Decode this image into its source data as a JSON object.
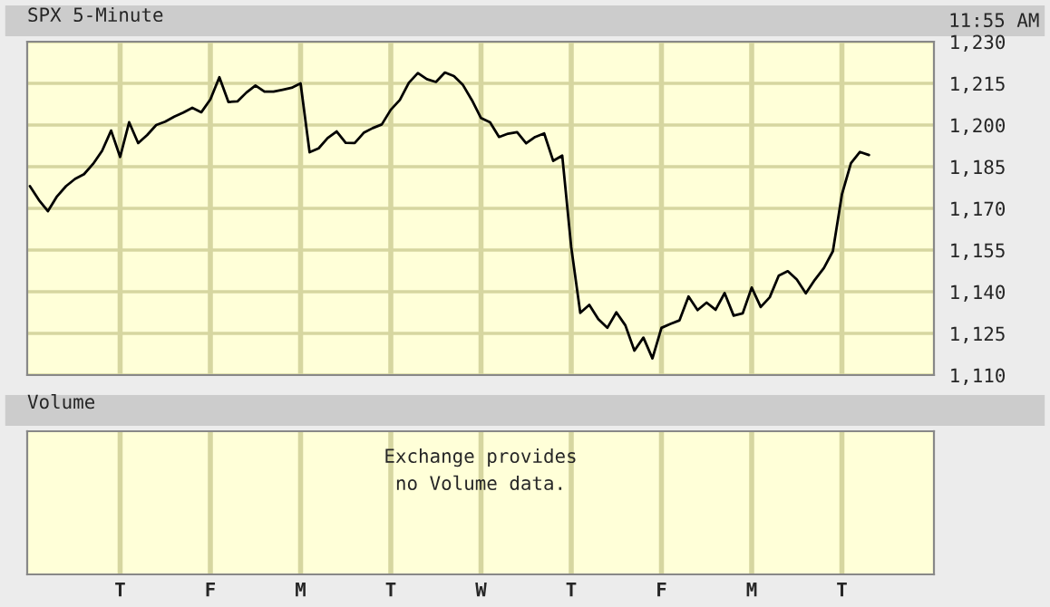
{
  "chart_data": [
    {
      "type": "line",
      "title": "SPX 5-Minute",
      "annotations": [
        "11:55 AM"
      ],
      "grid": true,
      "tick_labels": "y",
      "color": "#000000",
      "categories": [
        null,
        null,
        null,
        null,
        null,
        null,
        null,
        null,
        null,
        null,
        null,
        null,
        null,
        null,
        null,
        null,
        null,
        null,
        null,
        null,
        null,
        null,
        null,
        null,
        null,
        null,
        null,
        null,
        null,
        null,
        null,
        null,
        null,
        null,
        null,
        null,
        null,
        null,
        null,
        null,
        null,
        null,
        null,
        null,
        null,
        null,
        null,
        null,
        null,
        null,
        null,
        null,
        null,
        null,
        null,
        null,
        null,
        null,
        null,
        null,
        null,
        null,
        null,
        null,
        null,
        null,
        null,
        null,
        null,
        null,
        null,
        null,
        null,
        null,
        null,
        null,
        null,
        null,
        null,
        null,
        null,
        null,
        null,
        null,
        null,
        null,
        null,
        null,
        null,
        null,
        null,
        null,
        null,
        null
      ],
      "values": [
        1178,
        1173,
        1169,
        1174.3,
        1178,
        1180.6,
        1182.3,
        1186,
        1190.7,
        1198,
        1188.5,
        1201,
        1193.5,
        1196.4,
        1200,
        1201.2,
        1203,
        1204.5,
        1206.2,
        1204.6,
        1209.2,
        1217.2,
        1208.3,
        1208.5,
        1211.7,
        1214.2,
        1212,
        1212,
        1212.7,
        1213.4,
        1215,
        1190.2,
        1191.6,
        1195.3,
        1197.7,
        1193.6,
        1193.5,
        1197.2,
        1198.9,
        1200.2,
        1205.5,
        1209,
        1215.2,
        1218.7,
        1216.5,
        1215.5,
        1218.9,
        1217.6,
        1214.4,
        1208.9,
        1202.5,
        1201,
        1195.7,
        1196.9,
        1197.4,
        1193.4,
        1195.7,
        1197,
        1187.1,
        1189,
        1156,
        1132.4,
        1135.3,
        1130.1,
        1127,
        1132.6,
        1127.9,
        1118.8,
        1123.5,
        1116,
        1127,
        1128.4,
        1129.7,
        1138.3,
        1133.4,
        1136.1,
        1133.5,
        1139.5,
        1131.4,
        1132.2,
        1141.5,
        1134.5,
        1138,
        1145.8,
        1147.4,
        1144.4,
        1139.4,
        1144.3,
        1148.5,
        1154.6,
        1175,
        1186.3,
        1190.3,
        1189.2
      ],
      "ylim": [
        1110,
        1230
      ],
      "yticks": [
        {
          "value": 1110,
          "label": "1,110"
        },
        {
          "value": 1125,
          "label": "1,125"
        },
        {
          "value": 1140,
          "label": "1,140"
        },
        {
          "value": 1155,
          "label": "1,155"
        },
        {
          "value": 1170,
          "label": "1,170"
        },
        {
          "value": 1185,
          "label": "1,185"
        },
        {
          "value": 1200,
          "label": "1,200"
        },
        {
          "value": 1215,
          "label": "1,215"
        },
        {
          "value": 1230,
          "label": "1,230"
        }
      ]
    },
    {
      "type": "other",
      "title": "Volume",
      "annotations": [
        "Exchange provides\nno Volume data."
      ],
      "categories": [
        null,
        null,
        null,
        null,
        null,
        null,
        null,
        null,
        null,
        null,
        "T",
        null,
        null,
        null,
        null,
        null,
        null,
        null,
        null,
        null,
        "F",
        null,
        null,
        null,
        null,
        null,
        null,
        null,
        null,
        null,
        "M",
        null,
        null,
        null,
        null,
        null,
        null,
        null,
        null,
        null,
        "T",
        null,
        null,
        null,
        null,
        null,
        null,
        null,
        null,
        null,
        "W",
        null,
        null,
        null,
        null,
        null,
        null,
        null,
        null,
        null,
        "T",
        null,
        null,
        null,
        null,
        null,
        null,
        null,
        null,
        null,
        "F",
        null,
        null,
        null,
        null,
        null,
        null,
        null,
        null,
        null,
        "M",
        null,
        null,
        null,
        null,
        null,
        null,
        null,
        null,
        null,
        "T",
        null,
        null,
        null
      ]
    }
  ]
}
